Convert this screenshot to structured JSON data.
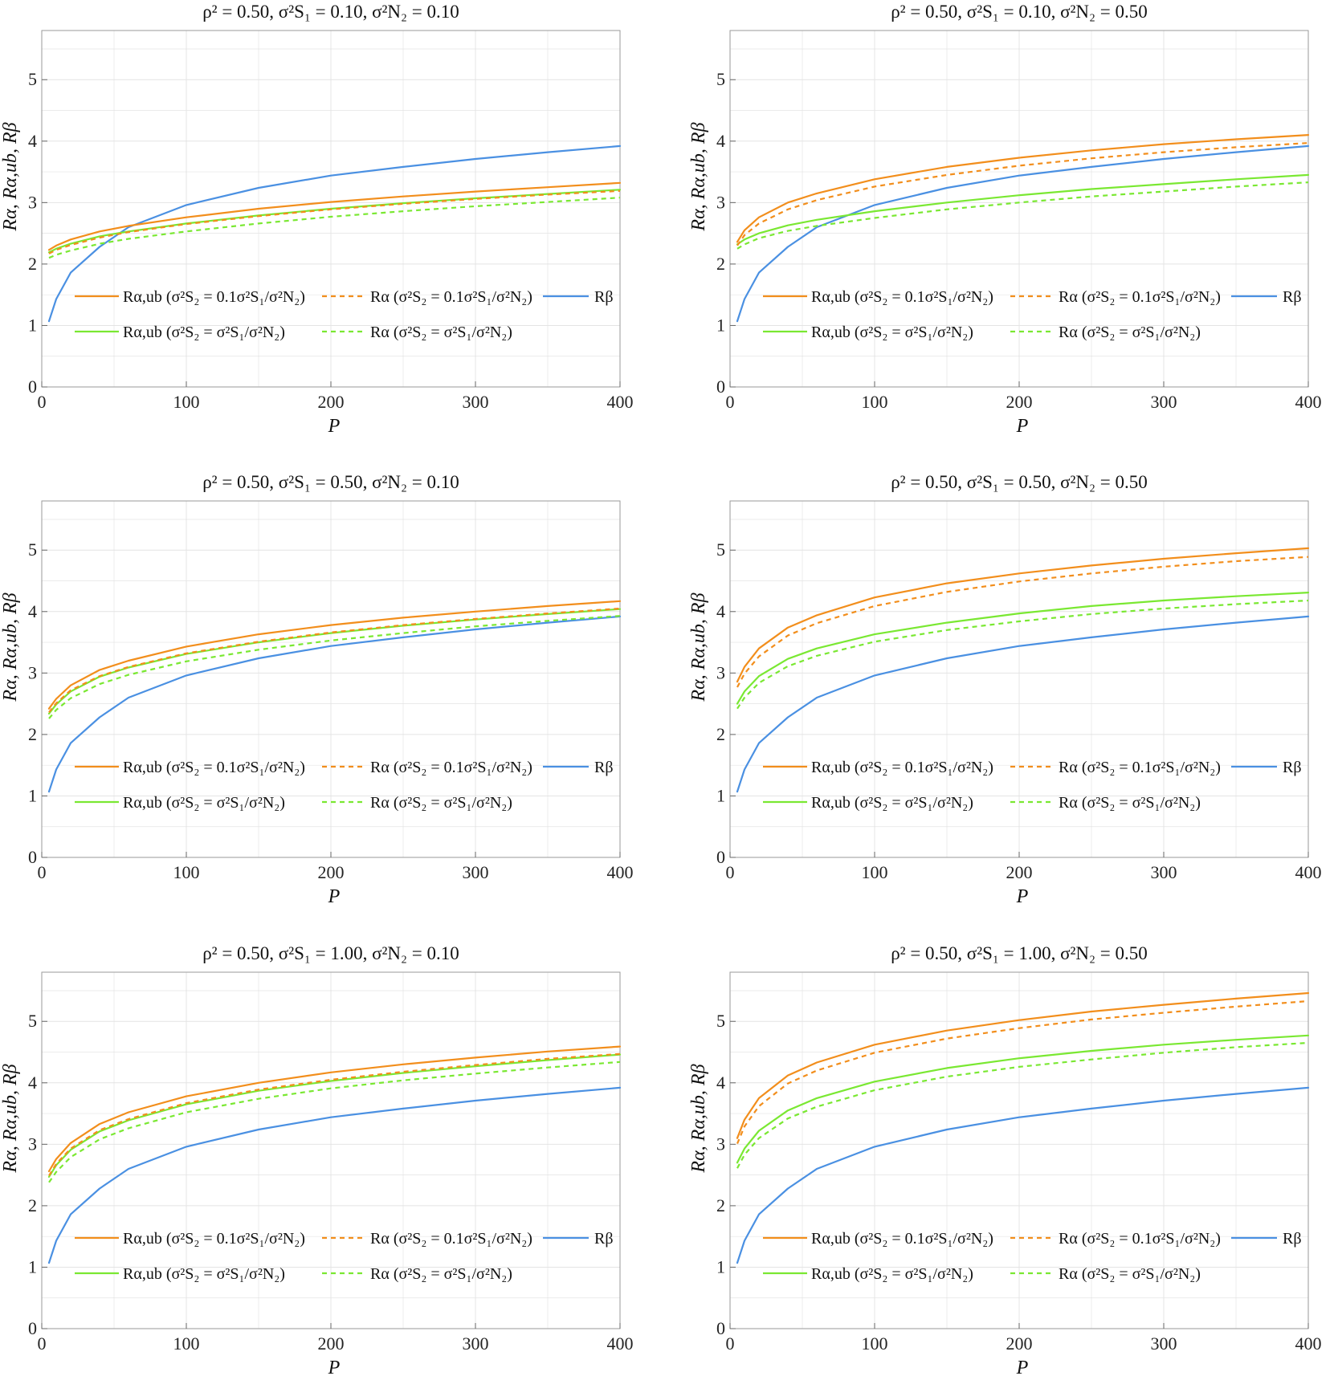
{
  "colors": {
    "orange": "#F28E1C",
    "green": "#7AE832",
    "blue": "#4A90E2",
    "grid": "#e4e4e4",
    "frame": "#9a9a9a"
  },
  "chart_data": [
    {
      "type": "line",
      "title": "ρ² = 0.50, σ²S₁ = 0.10, σ²N₂ = 0.10",
      "xlabel": "P",
      "ylabel": "Rα, Rα,ub, Rβ",
      "xlim": [
        0,
        400
      ],
      "ylim": [
        0,
        5.8
      ],
      "xticks": [
        0,
        100,
        200,
        300,
        400
      ],
      "yticks": [
        0,
        1,
        2,
        3,
        4,
        5
      ],
      "grid": true,
      "x": [
        5,
        10,
        20,
        40,
        60,
        100,
        150,
        200,
        250,
        300,
        350,
        400
      ],
      "series": [
        {
          "name": "Rα,ub (σ²S₂ = 0.1σ²S₁/σ²N₂)",
          "color": "orange",
          "dash": "solid",
          "values": [
            2.23,
            2.3,
            2.4,
            2.53,
            2.62,
            2.76,
            2.9,
            3.01,
            3.1,
            3.18,
            3.25,
            3.32
          ]
        },
        {
          "name": "Rα (σ²S₂ = 0.1σ²S₁/σ²N₂)",
          "color": "orange",
          "dash": "dashed",
          "values": [
            2.17,
            2.23,
            2.31,
            2.43,
            2.52,
            2.65,
            2.78,
            2.89,
            2.98,
            3.06,
            3.13,
            3.19
          ]
        },
        {
          "name": "Rβ",
          "color": "blue",
          "dash": "solid",
          "values": [
            1.07,
            1.43,
            1.86,
            2.28,
            2.6,
            2.96,
            3.24,
            3.44,
            3.58,
            3.71,
            3.82,
            3.92
          ]
        },
        {
          "name": "Rα,ub (σ²S₂ = σ²S₁/σ²N₂)",
          "color": "green",
          "dash": "solid",
          "values": [
            2.19,
            2.25,
            2.33,
            2.45,
            2.53,
            2.66,
            2.79,
            2.9,
            2.99,
            3.07,
            3.14,
            3.21
          ]
        },
        {
          "name": "Rα (σ²S₂ = σ²S₁/σ²N₂)",
          "color": "green",
          "dash": "dashed",
          "values": [
            2.1,
            2.15,
            2.22,
            2.33,
            2.41,
            2.53,
            2.66,
            2.77,
            2.86,
            2.94,
            3.01,
            3.08
          ]
        }
      ]
    },
    {
      "type": "line",
      "title": "ρ² = 0.50, σ²S₁ = 0.10, σ²N₂ = 0.50",
      "xlabel": "P",
      "ylabel": "Rα, Rα,ub, Rβ",
      "xlim": [
        0,
        400
      ],
      "ylim": [
        0,
        5.8
      ],
      "xticks": [
        0,
        100,
        200,
        300,
        400
      ],
      "yticks": [
        0,
        1,
        2,
        3,
        4,
        5
      ],
      "grid": true,
      "x": [
        5,
        10,
        20,
        40,
        60,
        100,
        150,
        200,
        250,
        300,
        350,
        400
      ],
      "series": [
        {
          "name": "Rα,ub (σ²S₂ = 0.1σ²S₁/σ²N₂)",
          "color": "orange",
          "dash": "solid",
          "values": [
            2.36,
            2.55,
            2.76,
            3.0,
            3.15,
            3.38,
            3.58,
            3.73,
            3.85,
            3.95,
            4.03,
            4.1
          ]
        },
        {
          "name": "Rα (σ²S₂ = 0.1σ²S₁/σ²N₂)",
          "color": "orange",
          "dash": "dashed",
          "values": [
            2.3,
            2.47,
            2.66,
            2.89,
            3.04,
            3.26,
            3.45,
            3.6,
            3.72,
            3.82,
            3.9,
            3.97
          ]
        },
        {
          "name": "Rβ",
          "color": "blue",
          "dash": "solid",
          "values": [
            1.07,
            1.43,
            1.86,
            2.28,
            2.6,
            2.96,
            3.24,
            3.44,
            3.58,
            3.71,
            3.82,
            3.92
          ]
        },
        {
          "name": "Rα,ub (σ²S₂ = σ²S₁/σ²N₂)",
          "color": "green",
          "dash": "solid",
          "values": [
            2.32,
            2.4,
            2.5,
            2.63,
            2.72,
            2.86,
            3.0,
            3.12,
            3.22,
            3.3,
            3.38,
            3.45
          ]
        },
        {
          "name": "Rα (σ²S₂ = σ²S₁/σ²N₂)",
          "color": "green",
          "dash": "dashed",
          "values": [
            2.25,
            2.32,
            2.42,
            2.54,
            2.62,
            2.75,
            2.89,
            3.0,
            3.1,
            3.18,
            3.26,
            3.33
          ]
        }
      ]
    },
    {
      "type": "line",
      "title": "ρ² = 0.50, σ²S₁ = 0.50, σ²N₂ = 0.10",
      "xlabel": "P",
      "ylabel": "Rα, Rα,ub, Rβ",
      "xlim": [
        0,
        400
      ],
      "ylim": [
        0,
        5.8
      ],
      "xticks": [
        0,
        100,
        200,
        300,
        400
      ],
      "yticks": [
        0,
        1,
        2,
        3,
        4,
        5
      ],
      "grid": true,
      "x": [
        5,
        10,
        20,
        40,
        60,
        100,
        150,
        200,
        250,
        300,
        350,
        400
      ],
      "series": [
        {
          "name": "Rα,ub (σ²S₂ = 0.1σ²S₁/σ²N₂)",
          "color": "orange",
          "dash": "solid",
          "values": [
            2.42,
            2.58,
            2.8,
            3.05,
            3.2,
            3.43,
            3.63,
            3.78,
            3.9,
            4.0,
            4.09,
            4.17
          ]
        },
        {
          "name": "Rα (σ²S₂ = 0.1σ²S₁/σ²N₂)",
          "color": "orange",
          "dash": "dashed",
          "values": [
            2.36,
            2.51,
            2.72,
            2.95,
            3.1,
            3.32,
            3.51,
            3.66,
            3.78,
            3.88,
            3.97,
            4.05
          ]
        },
        {
          "name": "Rβ",
          "color": "blue",
          "dash": "solid",
          "values": [
            1.07,
            1.43,
            1.86,
            2.28,
            2.6,
            2.96,
            3.24,
            3.44,
            3.58,
            3.71,
            3.82,
            3.92
          ]
        },
        {
          "name": "Rα,ub (σ²S₂ = σ²S₁/σ²N₂)",
          "color": "green",
          "dash": "solid",
          "values": [
            2.34,
            2.49,
            2.7,
            2.94,
            3.09,
            3.31,
            3.5,
            3.65,
            3.77,
            3.87,
            3.96,
            4.04
          ]
        },
        {
          "name": "Rα (σ²S₂ = σ²S₁/σ²N₂)",
          "color": "green",
          "dash": "dashed",
          "values": [
            2.26,
            2.4,
            2.59,
            2.82,
            2.97,
            3.19,
            3.38,
            3.53,
            3.65,
            3.76,
            3.85,
            3.93
          ]
        }
      ]
    },
    {
      "type": "line",
      "title": "ρ² = 0.50, σ²S₁ = 0.50, σ²N₂ = 0.50",
      "xlabel": "P",
      "ylabel": "Rα, Rα,ub, Rβ",
      "xlim": [
        0,
        400
      ],
      "ylim": [
        0,
        5.8
      ],
      "xticks": [
        0,
        100,
        200,
        300,
        400
      ],
      "yticks": [
        0,
        1,
        2,
        3,
        4,
        5
      ],
      "grid": true,
      "x": [
        5,
        10,
        20,
        40,
        60,
        100,
        150,
        200,
        250,
        300,
        350,
        400
      ],
      "series": [
        {
          "name": "Rα,ub (σ²S₂ = 0.1σ²S₁/σ²N₂)",
          "color": "orange",
          "dash": "solid",
          "values": [
            2.86,
            3.1,
            3.4,
            3.74,
            3.94,
            4.23,
            4.46,
            4.62,
            4.75,
            4.86,
            4.95,
            5.03
          ]
        },
        {
          "name": "Rα (σ²S₂ = 0.1σ²S₁/σ²N₂)",
          "color": "orange",
          "dash": "dashed",
          "values": [
            2.77,
            2.99,
            3.27,
            3.61,
            3.81,
            4.09,
            4.32,
            4.49,
            4.62,
            4.73,
            4.82,
            4.89
          ]
        },
        {
          "name": "Rβ",
          "color": "blue",
          "dash": "solid",
          "values": [
            1.07,
            1.43,
            1.86,
            2.28,
            2.6,
            2.96,
            3.24,
            3.44,
            3.58,
            3.71,
            3.82,
            3.92
          ]
        },
        {
          "name": "Rα,ub (σ²S₂ = σ²S₁/σ²N₂)",
          "color": "green",
          "dash": "solid",
          "values": [
            2.5,
            2.7,
            2.95,
            3.23,
            3.4,
            3.63,
            3.82,
            3.97,
            4.09,
            4.18,
            4.25,
            4.31
          ]
        },
        {
          "name": "Rα (σ²S₂ = σ²S₁/σ²N₂)",
          "color": "green",
          "dash": "dashed",
          "values": [
            2.42,
            2.6,
            2.84,
            3.11,
            3.28,
            3.51,
            3.7,
            3.84,
            3.96,
            4.05,
            4.12,
            4.18
          ]
        }
      ]
    },
    {
      "type": "line",
      "title": "ρ² = 0.50, σ²S₁ = 1.00, σ²N₂ = 0.10",
      "xlabel": "P",
      "ylabel": "Rα, Rα,ub, Rβ",
      "xlim": [
        0,
        400
      ],
      "ylim": [
        0,
        5.8
      ],
      "xticks": [
        0,
        100,
        200,
        300,
        400
      ],
      "yticks": [
        0,
        1,
        2,
        3,
        4,
        5
      ],
      "grid": true,
      "x": [
        5,
        10,
        20,
        40,
        60,
        100,
        150,
        200,
        250,
        300,
        350,
        400
      ],
      "series": [
        {
          "name": "Rα,ub (σ²S₂ = 0.1σ²S₁/σ²N₂)",
          "color": "orange",
          "dash": "solid",
          "values": [
            2.56,
            2.76,
            3.02,
            3.33,
            3.52,
            3.78,
            4.0,
            4.17,
            4.3,
            4.41,
            4.51,
            4.59
          ]
        },
        {
          "name": "Rα (σ²S₂ = 0.1σ²S₁/σ²N₂)",
          "color": "orange",
          "dash": "dashed",
          "values": [
            2.49,
            2.68,
            2.93,
            3.23,
            3.41,
            3.67,
            3.89,
            4.05,
            4.18,
            4.29,
            4.39,
            4.47
          ]
        },
        {
          "name": "Rβ",
          "color": "blue",
          "dash": "solid",
          "values": [
            1.07,
            1.43,
            1.86,
            2.28,
            2.6,
            2.96,
            3.24,
            3.44,
            3.58,
            3.71,
            3.82,
            3.92
          ]
        },
        {
          "name": "Rα,ub (σ²S₂ = σ²S₁/σ²N₂)",
          "color": "green",
          "dash": "solid",
          "values": [
            2.47,
            2.66,
            2.91,
            3.21,
            3.39,
            3.65,
            3.87,
            4.03,
            4.16,
            4.27,
            4.37,
            4.46
          ]
        },
        {
          "name": "Rα (σ²S₂ = σ²S₁/σ²N₂)",
          "color": "green",
          "dash": "dashed",
          "values": [
            2.38,
            2.55,
            2.79,
            3.08,
            3.26,
            3.52,
            3.74,
            3.91,
            4.04,
            4.15,
            4.25,
            4.34
          ]
        }
      ]
    },
    {
      "type": "line",
      "title": "ρ² = 0.50, σ²S₁ = 1.00, σ²N₂ = 0.50",
      "xlabel": "P",
      "ylabel": "Rα, Rα,ub, Rβ",
      "xlim": [
        0,
        400
      ],
      "ylim": [
        0,
        5.8
      ],
      "xticks": [
        0,
        100,
        200,
        300,
        400
      ],
      "yticks": [
        0,
        1,
        2,
        3,
        4,
        5
      ],
      "grid": true,
      "x": [
        5,
        10,
        20,
        40,
        60,
        100,
        150,
        200,
        250,
        300,
        350,
        400
      ],
      "series": [
        {
          "name": "Rα,ub (σ²S₂ = 0.1σ²S₁/σ²N₂)",
          "color": "orange",
          "dash": "solid",
          "values": [
            3.1,
            3.4,
            3.75,
            4.12,
            4.33,
            4.62,
            4.85,
            5.02,
            5.16,
            5.27,
            5.37,
            5.46
          ]
        },
        {
          "name": "Rα (σ²S₂ = 0.1σ²S₁/σ²N₂)",
          "color": "orange",
          "dash": "dashed",
          "values": [
            3.01,
            3.29,
            3.62,
            3.99,
            4.2,
            4.49,
            4.72,
            4.89,
            5.03,
            5.14,
            5.24,
            5.33
          ]
        },
        {
          "name": "Rβ",
          "color": "blue",
          "dash": "solid",
          "values": [
            1.07,
            1.43,
            1.86,
            2.28,
            2.6,
            2.96,
            3.24,
            3.44,
            3.58,
            3.71,
            3.82,
            3.92
          ]
        },
        {
          "name": "Rα,ub (σ²S₂ = σ²S₁/σ²N₂)",
          "color": "green",
          "dash": "solid",
          "values": [
            2.7,
            2.93,
            3.22,
            3.55,
            3.75,
            4.02,
            4.24,
            4.4,
            4.52,
            4.62,
            4.7,
            4.77
          ]
        },
        {
          "name": "Rα (σ²S₂ = σ²S₁/σ²N₂)",
          "color": "green",
          "dash": "dashed",
          "values": [
            2.61,
            2.83,
            3.1,
            3.42,
            3.61,
            3.88,
            4.1,
            4.26,
            4.38,
            4.49,
            4.58,
            4.65
          ]
        }
      ]
    }
  ]
}
